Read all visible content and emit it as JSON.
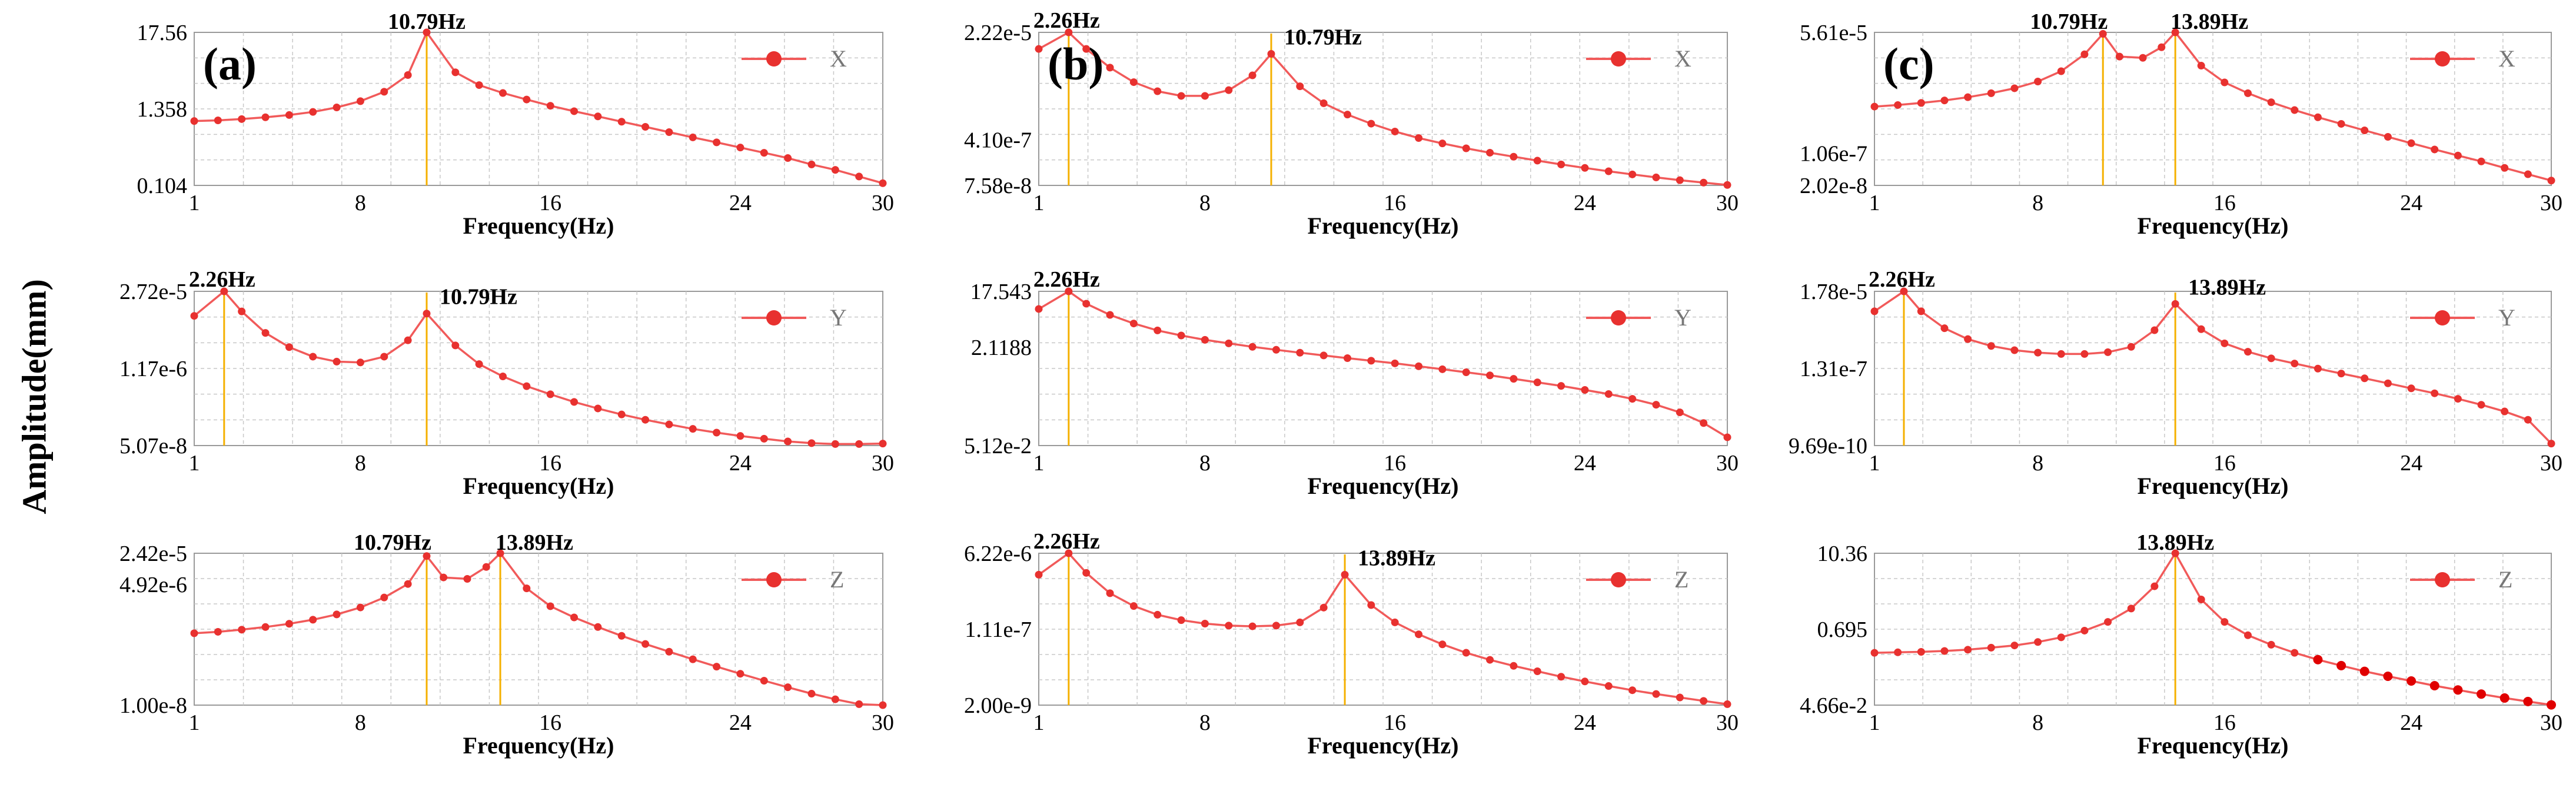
{
  "figure": {
    "shared_ylabel": "Amplitude(mm)"
  },
  "colors": {
    "line": "#f15a5a",
    "marker": "#e8312f",
    "marker_dark": "#e00000",
    "peak_line": "#f5b000",
    "grid": "#c8c8c8",
    "frame": "#9a9a9a"
  },
  "chart_data": [
    {
      "id": "a-X",
      "type": "line",
      "panel_label": "(a)",
      "legend": "X",
      "xlabel": "Frequency(Hz)",
      "xticks": [
        "1",
        "8",
        "16",
        "24",
        "30"
      ],
      "xtick_values": [
        1,
        8,
        16,
        24,
        30
      ],
      "xlim": [
        1,
        30
      ],
      "yscale": "log",
      "yticks": [
        "17.56",
        "1.358",
        "0.104"
      ],
      "ytick_values": [
        17.56,
        1.358,
        0.104
      ],
      "ylim": [
        0.104,
        17.56
      ],
      "peaks": [
        {
          "x": 10.79,
          "label": "10.79Hz"
        }
      ],
      "series": [
        {
          "name": "X",
          "x": [
            1,
            2,
            3,
            4,
            5,
            6,
            7,
            8,
            9,
            10,
            10.79,
            12,
            13,
            14,
            15,
            16,
            17,
            18,
            19,
            20,
            21,
            22,
            23,
            24,
            25,
            26,
            27,
            28,
            29,
            30
          ],
          "values": [
            0.9,
            0.92,
            0.96,
            1.02,
            1.1,
            1.22,
            1.42,
            1.75,
            2.4,
            4.2,
            17.56,
            4.6,
            3.0,
            2.3,
            1.85,
            1.5,
            1.25,
            1.05,
            0.88,
            0.74,
            0.62,
            0.52,
            0.44,
            0.37,
            0.31,
            0.26,
            0.21,
            0.175,
            0.14,
            0.112
          ]
        }
      ]
    },
    {
      "id": "b-X",
      "type": "line",
      "panel_label": "(b)",
      "legend": "X",
      "xlabel": "Frequency(Hz)",
      "xticks": [
        "1",
        "8",
        "16",
        "24",
        "30"
      ],
      "xtick_values": [
        1,
        8,
        16,
        24,
        30
      ],
      "xlim": [
        1,
        30
      ],
      "yscale": "log",
      "yticks": [
        "2.22e-5",
        "4.10e-7",
        "7.58e-8"
      ],
      "ytick_values": [
        2.22e-05,
        4.1e-07,
        7.58e-08
      ],
      "ylim": [
        7.58e-08,
        2.22e-05
      ],
      "peaks": [
        {
          "x": 2.26,
          "label": "2.26Hz"
        },
        {
          "x": 10.79,
          "label": "10.79Hz"
        }
      ],
      "series": [
        {
          "name": "X",
          "x": [
            1,
            2.26,
            3,
            4,
            5,
            6,
            7,
            8,
            9,
            10,
            10.79,
            12,
            13,
            14,
            15,
            16,
            17,
            18,
            19,
            20,
            21,
            22,
            23,
            24,
            25,
            26,
            27,
            28,
            29,
            30
          ],
          "values": [
            1.2e-05,
            2.22e-05,
            1.2e-05,
            6e-06,
            3.5e-06,
            2.5e-06,
            2.1e-06,
            2.1e-06,
            2.6e-06,
            4.5e-06,
            1e-05,
            3e-06,
            1.6e-06,
            1.05e-06,
            7.5e-07,
            5.6e-07,
            4.4e-07,
            3.6e-07,
            3e-07,
            2.55e-07,
            2.2e-07,
            1.9e-07,
            1.65e-07,
            1.45e-07,
            1.28e-07,
            1.14e-07,
            1.02e-07,
            9.2e-08,
            8.4e-08,
            7.7e-08
          ]
        }
      ]
    },
    {
      "id": "c-X",
      "type": "line",
      "panel_label": "(c)",
      "legend": "X",
      "xlabel": "Frequency(Hz)",
      "xticks": [
        "1",
        "8",
        "16",
        "24",
        "30"
      ],
      "xtick_values": [
        1,
        8,
        16,
        24,
        30
      ],
      "xlim": [
        1,
        30
      ],
      "yscale": "log",
      "yticks": [
        "5.61e-5",
        "1.06e-7",
        "2.02e-8"
      ],
      "ytick_values": [
        5.61e-05,
        1.06e-07,
        2.02e-08
      ],
      "ylim": [
        2.02e-08,
        5.61e-05
      ],
      "peaks": [
        {
          "x": 10.79,
          "label": "10.79Hz"
        },
        {
          "x": 13.89,
          "label": "13.89Hz"
        }
      ],
      "series": [
        {
          "name": "X",
          "x": [
            1,
            2,
            3,
            4,
            5,
            6,
            7,
            8,
            9,
            10,
            10.79,
            11.5,
            12.5,
            13.3,
            13.89,
            15,
            16,
            17,
            18,
            19,
            20,
            21,
            22,
            23,
            24,
            25,
            26,
            27,
            28,
            29,
            30
          ],
          "values": [
            1.2e-06,
            1.3e-06,
            1.45e-06,
            1.65e-06,
            1.95e-06,
            2.4e-06,
            3.1e-06,
            4.4e-06,
            7.5e-06,
            1.8e-05,
            5.2e-05,
            1.6e-05,
            1.5e-05,
            2.6e-05,
            5.61e-05,
            1e-05,
            4.2e-06,
            2.4e-06,
            1.5e-06,
            1e-06,
            6.9e-07,
            4.9e-07,
            3.5e-07,
            2.5e-07,
            1.8e-07,
            1.3e-07,
            9.5e-08,
            7e-08,
            5e-08,
            3.6e-08,
            2.6e-08
          ]
        }
      ]
    },
    {
      "id": "a-Y",
      "type": "line",
      "panel_label": "",
      "legend": "Y",
      "xlabel": "Frequency(Hz)",
      "xticks": [
        "1",
        "8",
        "16",
        "24",
        "30"
      ],
      "xtick_values": [
        1,
        8,
        16,
        24,
        30
      ],
      "xlim": [
        1,
        30
      ],
      "yscale": "log",
      "yticks": [
        "2.72e-5",
        "1.17e-6",
        "5.07e-8"
      ],
      "ytick_values": [
        2.72e-05,
        1.17e-06,
        5.07e-08
      ],
      "ylim": [
        5.07e-08,
        2.72e-05
      ],
      "peaks": [
        {
          "x": 2.26,
          "label": "2.26Hz"
        },
        {
          "x": 10.79,
          "label": "10.79Hz"
        }
      ],
      "series": [
        {
          "name": "Y",
          "x": [
            1,
            2.26,
            3,
            4,
            5,
            6,
            7,
            8,
            9,
            10,
            10.79,
            12,
            13,
            14,
            15,
            16,
            17,
            18,
            19,
            20,
            21,
            22,
            23,
            24,
            25,
            26,
            27,
            28,
            29,
            30
          ],
          "values": [
            1e-05,
            2.72e-05,
            1.2e-05,
            5e-06,
            2.8e-06,
            1.9e-06,
            1.55e-06,
            1.5e-06,
            1.9e-06,
            3.7e-06,
            1.1e-05,
            3e-06,
            1.4e-06,
            8.5e-07,
            5.7e-07,
            4.1e-07,
            3e-07,
            2.3e-07,
            1.8e-07,
            1.45e-07,
            1.2e-07,
            1e-07,
            8.6e-08,
            7.5e-08,
            6.7e-08,
            6e-08,
            5.6e-08,
            5.4e-08,
            5.4e-08,
            5.5e-08
          ]
        }
      ]
    },
    {
      "id": "b-Y",
      "type": "line",
      "panel_label": "",
      "legend": "Y",
      "xlabel": "Frequency(Hz)",
      "xticks": [
        "1",
        "8",
        "16",
        "24",
        "30"
      ],
      "xtick_values": [
        1,
        8,
        16,
        24,
        30
      ],
      "xlim": [
        1,
        30
      ],
      "yscale": "log",
      "yticks": [
        "17.543",
        "2.1188",
        "5.12e-2"
      ],
      "ytick_values": [
        17.543,
        2.1188,
        0.0512
      ],
      "ylim": [
        0.0512,
        17.543
      ],
      "peaks": [
        {
          "x": 2.26,
          "label": "2.26Hz"
        }
      ],
      "series": [
        {
          "name": "Y",
          "x": [
            1,
            2.26,
            3,
            4,
            5,
            6,
            7,
            8,
            9,
            10,
            11,
            12,
            13,
            14,
            15,
            16,
            17,
            18,
            19,
            20,
            21,
            22,
            23,
            24,
            25,
            26,
            27,
            28,
            29,
            30
          ],
          "values": [
            9.0,
            17.543,
            11.0,
            7.2,
            5.2,
            4.0,
            3.3,
            2.8,
            2.45,
            2.15,
            1.92,
            1.72,
            1.55,
            1.4,
            1.27,
            1.15,
            1.03,
            0.92,
            0.82,
            0.73,
            0.64,
            0.56,
            0.49,
            0.42,
            0.36,
            0.3,
            0.24,
            0.18,
            0.12,
            0.07
          ]
        }
      ]
    },
    {
      "id": "c-Y",
      "type": "line",
      "panel_label": "",
      "legend": "Y",
      "xlabel": "Frequency(Hz)",
      "xticks": [
        "1",
        "8",
        "16",
        "24",
        "30"
      ],
      "xtick_values": [
        1,
        8,
        16,
        24,
        30
      ],
      "xlim": [
        1,
        30
      ],
      "yscale": "log",
      "yticks": [
        "1.78e-5",
        "1.31e-7",
        "9.69e-10"
      ],
      "ytick_values": [
        1.78e-05,
        1.31e-07,
        9.69e-10
      ],
      "ylim": [
        9.69e-10,
        1.78e-05
      ],
      "peaks": [
        {
          "x": 2.26,
          "label": "2.26Hz"
        },
        {
          "x": 13.89,
          "label": "13.89Hz"
        }
      ],
      "series": [
        {
          "name": "Y",
          "x": [
            1,
            2.26,
            3,
            4,
            5,
            6,
            7,
            8,
            9,
            10,
            11,
            12,
            13,
            13.89,
            15,
            16,
            17,
            18,
            19,
            20,
            21,
            22,
            23,
            24,
            25,
            26,
            27,
            28,
            29,
            30
          ],
          "values": [
            5e-06,
            1.78e-05,
            5e-06,
            1.7e-06,
            8.5e-07,
            5.5e-07,
            4.2e-07,
            3.6e-07,
            3.3e-07,
            3.3e-07,
            3.7e-07,
            5.2e-07,
            1.5e-06,
            8e-06,
            1.6e-06,
            6.5e-07,
            3.8e-07,
            2.5e-07,
            1.8e-07,
            1.3e-07,
            9.5e-08,
            7e-08,
            5.1e-08,
            3.7e-08,
            2.7e-08,
            1.9e-08,
            1.3e-08,
            8.5e-09,
            5e-09,
            1.1e-09
          ]
        }
      ]
    },
    {
      "id": "a-Z",
      "type": "line",
      "panel_label": "",
      "legend": "Z",
      "xlabel": "Frequency(Hz)",
      "xticks": [
        "1",
        "8",
        "16",
        "24",
        "30"
      ],
      "xtick_values": [
        1,
        8,
        16,
        24,
        30
      ],
      "xlim": [
        1,
        30
      ],
      "yscale": "log",
      "yticks": [
        "2.42e-5",
        "4.92e-6",
        "1.00e-8"
      ],
      "ytick_values": [
        2.42e-05,
        4.92e-06,
        1e-08
      ],
      "ylim": [
        1e-08,
        2.42e-05
      ],
      "peaks": [
        {
          "x": 10.79,
          "label": "10.79Hz"
        },
        {
          "x": 13.89,
          "label": "13.89Hz"
        }
      ],
      "series": [
        {
          "name": "Z",
          "x": [
            1,
            2,
            3,
            4,
            5,
            6,
            7,
            8,
            9,
            10,
            10.79,
            11.5,
            12.5,
            13.3,
            13.89,
            15,
            16,
            17,
            18,
            19,
            20,
            21,
            22,
            23,
            24,
            25,
            26,
            27,
            28,
            29,
            30
          ],
          "values": [
            4e-07,
            4.3e-07,
            4.8e-07,
            5.5e-07,
            6.5e-07,
            8e-07,
            1.05e-06,
            1.5e-06,
            2.5e-06,
            5e-06,
            2.1e-05,
            7e-06,
            6.5e-06,
            1.2e-05,
            2.42e-05,
            4e-06,
            1.6e-06,
            9e-07,
            5.5e-07,
            3.5e-07,
            2.3e-07,
            1.55e-07,
            1.05e-07,
            7.2e-08,
            5e-08,
            3.5e-08,
            2.5e-08,
            1.8e-08,
            1.35e-08,
            1.05e-08,
            1e-08
          ]
        }
      ]
    },
    {
      "id": "b-Z",
      "type": "line",
      "panel_label": "",
      "legend": "Z",
      "xlabel": "Frequency(Hz)",
      "xticks": [
        "1",
        "8",
        "16",
        "24",
        "30"
      ],
      "xtick_values": [
        1,
        8,
        16,
        24,
        30
      ],
      "xlim": [
        1,
        30
      ],
      "yscale": "log",
      "yticks": [
        "6.22e-6",
        "1.11e-7",
        "2.00e-9"
      ],
      "ytick_values": [
        6.22e-06,
        1.11e-07,
        2e-09
      ],
      "ylim": [
        2e-09,
        6.22e-06
      ],
      "peaks": [
        {
          "x": 2.26,
          "label": "2.26Hz"
        },
        {
          "x": 13.89,
          "label": "13.89Hz"
        }
      ],
      "series": [
        {
          "name": "Z",
          "x": [
            1,
            2.26,
            3,
            4,
            5,
            6,
            7,
            8,
            9,
            10,
            11,
            12,
            13,
            13.89,
            15,
            16,
            17,
            18,
            19,
            20,
            21,
            22,
            23,
            24,
            25,
            26,
            27,
            28,
            29,
            30
          ],
          "values": [
            2e-06,
            6.22e-06,
            2.2e-06,
            7.5e-07,
            3.8e-07,
            2.4e-07,
            1.8e-07,
            1.5e-07,
            1.35e-07,
            1.3e-07,
            1.35e-07,
            1.6e-07,
            3.5e-07,
            2e-06,
            4e-07,
            1.6e-07,
            8.5e-08,
            5e-08,
            3.2e-08,
            2.2e-08,
            1.6e-08,
            1.2e-08,
            9e-09,
            7e-09,
            5.5e-09,
            4.4e-09,
            3.6e-09,
            3e-09,
            2.5e-09,
            2.1e-09
          ]
        }
      ]
    },
    {
      "id": "c-Z",
      "type": "line",
      "panel_label": "",
      "legend": "Z",
      "xlabel": "Frequency(Hz)",
      "xticks": [
        "1",
        "8",
        "16",
        "24",
        "30"
      ],
      "xtick_values": [
        1,
        8,
        16,
        24,
        30
      ],
      "xlim": [
        1,
        30
      ],
      "yscale": "log",
      "yticks": [
        "10.36",
        "0.695",
        "4.66e-2"
      ],
      "ytick_values": [
        10.36,
        0.695,
        0.0466
      ],
      "ylim": [
        0.0466,
        10.36
      ],
      "peaks": [
        {
          "x": 13.89,
          "label": "13.89Hz"
        }
      ],
      "series": [
        {
          "name": "Z",
          "x": [
            1,
            2,
            3,
            4,
            5,
            6,
            7,
            8,
            9,
            10,
            11,
            12,
            13,
            13.89,
            15,
            16,
            17,
            18,
            19,
            20,
            21,
            22,
            23,
            24,
            25,
            26,
            27,
            28,
            29,
            30
          ],
          "values": [
            0.3,
            0.305,
            0.31,
            0.32,
            0.335,
            0.36,
            0.39,
            0.44,
            0.52,
            0.66,
            0.9,
            1.45,
            3.2,
            10.36,
            2.0,
            0.9,
            0.56,
            0.4,
            0.3,
            0.235,
            0.19,
            0.155,
            0.13,
            0.11,
            0.093,
            0.08,
            0.069,
            0.06,
            0.053,
            0.047
          ]
        }
      ]
    }
  ]
}
